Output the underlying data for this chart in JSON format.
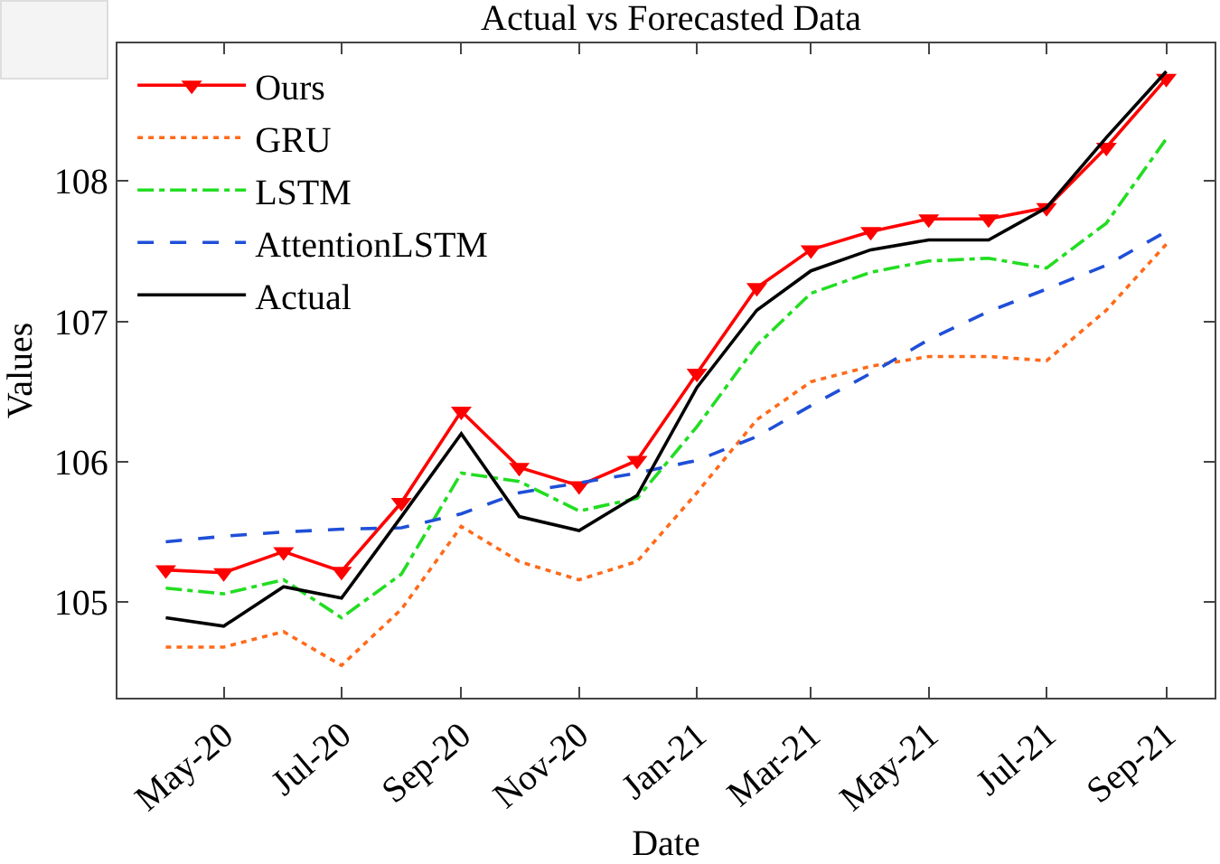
{
  "chart_data": {
    "type": "line",
    "title": "Actual vs Forecasted Data",
    "xlabel": "Date",
    "ylabel": "Values",
    "x": [
      "2020-04",
      "2020-05",
      "2020-06",
      "2020-07",
      "2020-08",
      "2020-09",
      "2020-10",
      "2020-11",
      "2020-12",
      "2021-01",
      "2021-02",
      "2021-03",
      "2021-04",
      "2021-05",
      "2021-06",
      "2021-07",
      "2021-08",
      "2021-09"
    ],
    "series": [
      {
        "name": "Ours",
        "color": "#ff0000",
        "marker": "triangle",
        "line_style": "solid",
        "values": [
          105.23,
          105.21,
          105.36,
          105.22,
          105.71,
          106.36,
          105.96,
          105.83,
          106.01,
          106.63,
          107.24,
          107.51,
          107.64,
          107.73,
          107.73,
          107.81,
          108.24,
          108.73
        ]
      },
      {
        "name": "GRU",
        "color": "#ff6a1a",
        "marker": "none",
        "line_style": "dotted",
        "values": [
          104.68,
          104.68,
          104.79,
          104.55,
          104.95,
          105.54,
          105.29,
          105.16,
          105.29,
          105.78,
          106.3,
          106.57,
          106.68,
          106.75,
          106.75,
          106.72,
          107.08,
          107.55
        ]
      },
      {
        "name": "LSTM",
        "color": "#22dd22",
        "marker": "none",
        "line_style": "dashdot",
        "values": [
          105.1,
          105.06,
          105.16,
          104.89,
          105.2,
          105.92,
          105.86,
          105.65,
          105.74,
          106.25,
          106.83,
          107.2,
          107.35,
          107.43,
          107.45,
          107.38,
          107.7,
          108.3
        ]
      },
      {
        "name": "AttentionLSTM",
        "color": "#1f4fd8",
        "marker": "none",
        "line_style": "dashed",
        "values": [
          105.43,
          105.47,
          105.5,
          105.52,
          105.53,
          105.63,
          105.78,
          105.85,
          105.92,
          106.01,
          106.18,
          106.4,
          106.63,
          106.87,
          107.07,
          107.23,
          107.4,
          107.64
        ]
      },
      {
        "name": "Actual",
        "color": "#000000",
        "marker": "none",
        "line_style": "solid",
        "values": [
          104.89,
          104.83,
          105.11,
          105.03,
          105.61,
          106.2,
          105.61,
          105.51,
          105.76,
          106.53,
          107.08,
          107.36,
          107.51,
          107.58,
          107.58,
          107.81,
          108.31,
          108.78
        ]
      }
    ],
    "xlim": [
      "2020-03-07",
      "2021-09-26"
    ],
    "xticks": [
      {
        "value": "2020-05",
        "label": "May-20"
      },
      {
        "value": "2020-07",
        "label": "Jul-20"
      },
      {
        "value": "2020-09",
        "label": "Sep-20"
      },
      {
        "value": "2020-11",
        "label": "Nov-20"
      },
      {
        "value": "2021-01",
        "label": "Jan-21"
      },
      {
        "value": "2021-03",
        "label": "Mar-21"
      },
      {
        "value": "2021-05",
        "label": "May-21"
      },
      {
        "value": "2021-07",
        "label": "Jul-21"
      },
      {
        "value": "2021-09",
        "label": "Sep-21"
      }
    ],
    "ylim": [
      104.32,
      108.98
    ],
    "yticks": [
      105,
      106,
      107,
      108
    ],
    "grid": false,
    "legend": "top left"
  }
}
